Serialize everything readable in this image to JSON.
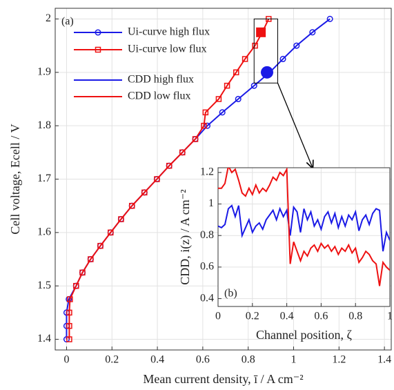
{
  "chart_data": [
    {
      "type": "line",
      "panel_label": "(a)",
      "xlabel": "Mean current density, ī / A cm⁻²",
      "ylabel": "Cell voltage, Ecell / V",
      "xlim": [
        -0.05,
        1.43
      ],
      "ylim": [
        1.38,
        2.02
      ],
      "xticks": [
        0,
        0.2,
        0.4,
        0.6,
        0.8,
        1,
        1.2,
        1.4
      ],
      "yticks": [
        1.4,
        1.5,
        1.6,
        1.7,
        1.8,
        1.9,
        2
      ],
      "grid": true,
      "legend": "upper left",
      "series": [
        {
          "name": "Ui-curve high flux",
          "color": "#1a1ae6",
          "marker": "circle",
          "x": [
            0,
            0,
            0,
            0.01,
            0.042,
            0.07,
            0.106,
            0.149,
            0.194,
            0.24,
            0.288,
            0.343,
            0.398,
            0.452,
            0.51,
            0.567,
            0.62,
            0.686,
            0.756,
            0.826,
            0.895,
            0.953,
            1.013,
            1.083,
            1.16
          ],
          "values": [
            1.4,
            1.425,
            1.45,
            1.475,
            1.5,
            1.525,
            1.55,
            1.575,
            1.6,
            1.625,
            1.65,
            1.675,
            1.7,
            1.725,
            1.75,
            1.775,
            1.8,
            1.825,
            1.85,
            1.875,
            1.9,
            1.925,
            1.95,
            1.975,
            2
          ]
        },
        {
          "name": "Ui-curve low flux",
          "color": "#ee1111",
          "marker": "square",
          "x": [
            0.012,
            0.012,
            0.012,
            0.015,
            0.042,
            0.07,
            0.106,
            0.149,
            0.194,
            0.24,
            0.288,
            0.343,
            0.398,
            0.452,
            0.51,
            0.567,
            0.605,
            0.612,
            0.67,
            0.707,
            0.747,
            0.786,
            0.83,
            0.862,
            0.89
          ],
          "values": [
            1.4,
            1.425,
            1.45,
            1.475,
            1.5,
            1.525,
            1.55,
            1.575,
            1.6,
            1.625,
            1.65,
            1.675,
            1.7,
            1.725,
            1.75,
            1.775,
            1.8,
            1.825,
            1.85,
            1.875,
            1.9,
            1.925,
            1.95,
            1.975,
            2
          ]
        }
      ],
      "highlights": [
        {
          "x": 0.883,
          "y": 1.9,
          "color": "#1a1ae6",
          "marker": "circle"
        },
        {
          "x": 0.856,
          "y": 1.975,
          "color": "#ee1111",
          "marker": "square"
        }
      ],
      "zoom_box": {
        "xlim": [
          0.826,
          0.93
        ],
        "ylim": [
          1.88,
          2
        ]
      }
    },
    {
      "type": "line",
      "panel_label": "(b)",
      "xlabel": "Channel position, ζ",
      "ylabel": "CDD, i(z) / A cm⁻²",
      "xlim": [
        0,
        1
      ],
      "ylim": [
        0.35,
        1.23
      ],
      "xticks": [
        0,
        0.2,
        0.4,
        0.6,
        0.8,
        1
      ],
      "yticks": [
        0.4,
        0.6,
        0.8,
        1,
        1.2
      ],
      "grid": true,
      "x": [
        0,
        0.02,
        0.04,
        0.06,
        0.08,
        0.1,
        0.12,
        0.14,
        0.16,
        0.18,
        0.2,
        0.22,
        0.24,
        0.26,
        0.28,
        0.3,
        0.32,
        0.34,
        0.36,
        0.38,
        0.4,
        0.42,
        0.44,
        0.46,
        0.48,
        0.5,
        0.52,
        0.54,
        0.56,
        0.58,
        0.6,
        0.62,
        0.64,
        0.66,
        0.68,
        0.7,
        0.72,
        0.74,
        0.76,
        0.78,
        0.8,
        0.82,
        0.84,
        0.86,
        0.88,
        0.9,
        0.92,
        0.94,
        0.96,
        0.98,
        1
      ],
      "series": [
        {
          "name": "CDD high flux",
          "color": "#1a1ae6",
          "values": [
            0.86,
            0.85,
            0.87,
            0.97,
            0.99,
            0.92,
            0.99,
            0.8,
            0.85,
            0.9,
            0.82,
            0.86,
            0.88,
            0.84,
            0.9,
            0.93,
            0.96,
            0.9,
            0.97,
            0.92,
            0.96,
            0.8,
            0.98,
            0.95,
            0.82,
            0.97,
            0.9,
            0.95,
            0.86,
            0.9,
            0.84,
            0.92,
            0.95,
            0.88,
            0.94,
            0.85,
            0.92,
            0.86,
            0.93,
            0.9,
            0.95,
            0.83,
            0.9,
            0.93,
            0.87,
            0.94,
            0.97,
            0.96,
            0.7,
            0.82,
            0.77
          ]
        },
        {
          "name": "CDD low flux",
          "color": "#ee1111",
          "values": [
            1.1,
            1.1,
            1.13,
            1.24,
            1.2,
            1.22,
            1.15,
            1.07,
            1.05,
            1.1,
            1.06,
            1.12,
            1.07,
            1.1,
            1.08,
            1.12,
            1.17,
            1.15,
            1.2,
            1.18,
            1.22,
            0.62,
            0.76,
            0.7,
            0.64,
            0.7,
            0.67,
            0.72,
            0.74,
            0.7,
            0.75,
            0.72,
            0.74,
            0.7,
            0.73,
            0.68,
            0.72,
            0.7,
            0.74,
            0.69,
            0.72,
            0.63,
            0.66,
            0.7,
            0.68,
            0.64,
            0.62,
            0.48,
            0.63,
            0.6,
            0.58
          ]
        }
      ]
    }
  ]
}
